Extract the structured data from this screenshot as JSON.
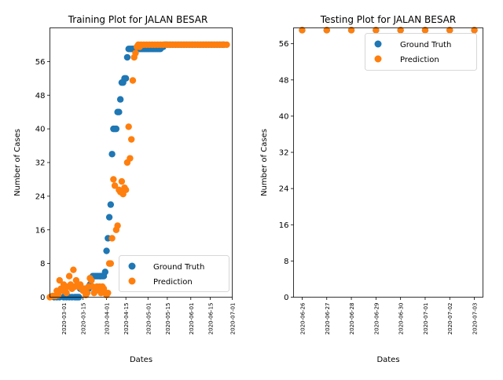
{
  "colors": {
    "ground_truth": "#1f77b4",
    "prediction": "#ff7f0e"
  },
  "chart_data": [
    {
      "type": "scatter",
      "title": "Training Plot for JALAN BESAR",
      "xlabel": "Dates",
      "ylabel": "Number of Cases",
      "x_axis": "date",
      "xlim": [
        "2020-02-20",
        "2020-07-01"
      ],
      "ylim": [
        0,
        64
      ],
      "xticks": [
        "2020-03-01",
        "2020-03-15",
        "2020-04-01",
        "2020-04-15",
        "2020-05-01",
        "2020-05-15",
        "2020-06-01",
        "2020-06-15",
        "2020-07-01"
      ],
      "yticks": [
        0,
        8,
        16,
        24,
        32,
        40,
        48,
        56
      ],
      "legend": {
        "position": "lower-right",
        "entries": [
          "Ground Truth",
          "Prediction"
        ]
      },
      "series": [
        {
          "name": "Ground Truth",
          "color": "#1f77b4",
          "points": [
            [
              "2020-02-23",
              0
            ],
            [
              "2020-02-25",
              0
            ],
            [
              "2020-02-27",
              0
            ],
            [
              "2020-03-01",
              0
            ],
            [
              "2020-03-03",
              0
            ],
            [
              "2020-03-05",
              0
            ],
            [
              "2020-03-07",
              0
            ],
            [
              "2020-03-09",
              0
            ],
            [
              "2020-03-10",
              0
            ],
            [
              "2020-03-11",
              0
            ],
            [
              "2020-03-12",
              0
            ],
            [
              "2020-03-13",
              2
            ],
            [
              "2020-03-14",
              2
            ],
            [
              "2020-03-15",
              2
            ],
            [
              "2020-03-16",
              2
            ],
            [
              "2020-03-17",
              2
            ],
            [
              "2020-03-18",
              2
            ],
            [
              "2020-03-19",
              2
            ],
            [
              "2020-03-20",
              3
            ],
            [
              "2020-03-21",
              4
            ],
            [
              "2020-03-22",
              5
            ],
            [
              "2020-03-23",
              5
            ],
            [
              "2020-03-24",
              5
            ],
            [
              "2020-03-25",
              5
            ],
            [
              "2020-03-26",
              5
            ],
            [
              "2020-03-27",
              5
            ],
            [
              "2020-03-28",
              5
            ],
            [
              "2020-03-29",
              5
            ],
            [
              "2020-03-30",
              5
            ],
            [
              "2020-03-31",
              6
            ],
            [
              "2020-04-01",
              11
            ],
            [
              "2020-04-02",
              14
            ],
            [
              "2020-04-03",
              19
            ],
            [
              "2020-04-04",
              22
            ],
            [
              "2020-04-05",
              34
            ],
            [
              "2020-04-06",
              40
            ],
            [
              "2020-04-07",
              40
            ],
            [
              "2020-04-08",
              40
            ],
            [
              "2020-04-09",
              44
            ],
            [
              "2020-04-10",
              44
            ],
            [
              "2020-04-11",
              47
            ],
            [
              "2020-04-12",
              51
            ],
            [
              "2020-04-13",
              51
            ],
            [
              "2020-04-14",
              52
            ],
            [
              "2020-04-15",
              52
            ],
            [
              "2020-04-16",
              57
            ],
            [
              "2020-04-17",
              59
            ],
            [
              "2020-04-18",
              59
            ],
            [
              "2020-04-19",
              59
            ],
            [
              "2020-04-20",
              59
            ],
            [
              "2020-04-21",
              59
            ],
            [
              "2020-04-22",
              59
            ],
            [
              "2020-04-23",
              59
            ],
            [
              "2020-04-24",
              59
            ],
            [
              "2020-04-25",
              59
            ],
            [
              "2020-04-26",
              59
            ],
            [
              "2020-04-27",
              59
            ],
            [
              "2020-04-28",
              59
            ],
            [
              "2020-04-29",
              59
            ],
            [
              "2020-04-30",
              59
            ],
            [
              "2020-05-01",
              59
            ],
            [
              "2020-05-02",
              59
            ],
            [
              "2020-05-03",
              59
            ],
            [
              "2020-05-04",
              59
            ],
            [
              "2020-05-05",
              59
            ],
            [
              "2020-05-06",
              59
            ],
            [
              "2020-05-07",
              59
            ],
            [
              "2020-05-08",
              59
            ],
            [
              "2020-05-09",
              59
            ],
            [
              "2020-05-10",
              59
            ],
            [
              "2020-05-11",
              59.5
            ],
            [
              "2020-05-12",
              59.5
            ],
            [
              "2020-05-13",
              60
            ],
            [
              "2020-05-14",
              60
            ],
            [
              "2020-05-15",
              60
            ],
            [
              "2020-05-17",
              60
            ],
            [
              "2020-05-19",
              60
            ],
            [
              "2020-05-21",
              60
            ],
            [
              "2020-05-23",
              60
            ],
            [
              "2020-05-25",
              60
            ],
            [
              "2020-05-27",
              60
            ],
            [
              "2020-05-29",
              60
            ],
            [
              "2020-05-31",
              60
            ],
            [
              "2020-06-02",
              60
            ],
            [
              "2020-06-04",
              60
            ],
            [
              "2020-06-06",
              60
            ],
            [
              "2020-06-08",
              60
            ],
            [
              "2020-06-10",
              60
            ],
            [
              "2020-06-12",
              60
            ],
            [
              "2020-06-14",
              60
            ],
            [
              "2020-06-16",
              60
            ],
            [
              "2020-06-18",
              60
            ],
            [
              "2020-06-20",
              60
            ],
            [
              "2020-06-22",
              60
            ],
            [
              "2020-06-24",
              60
            ],
            [
              "2020-06-25",
              60
            ]
          ]
        },
        {
          "name": "Prediction",
          "color": "#ff7f0e",
          "points": [
            [
              "2020-02-20",
              0
            ],
            [
              "2020-02-22",
              0.3
            ],
            [
              "2020-02-24",
              0.3
            ],
            [
              "2020-02-25",
              1.5
            ],
            [
              "2020-02-26",
              0.5
            ],
            [
              "2020-02-27",
              4
            ],
            [
              "2020-02-28",
              2
            ],
            [
              "2020-02-29",
              1.5
            ],
            [
              "2020-03-01",
              3
            ],
            [
              "2020-03-02",
              2
            ],
            [
              "2020-03-03",
              1
            ],
            [
              "2020-03-04",
              2.5
            ],
            [
              "2020-03-05",
              5
            ],
            [
              "2020-03-06",
              3
            ],
            [
              "2020-03-07",
              2
            ],
            [
              "2020-03-08",
              6.5
            ],
            [
              "2020-03-09",
              2.5
            ],
            [
              "2020-03-10",
              4
            ],
            [
              "2020-03-11",
              3
            ],
            [
              "2020-03-12",
              2.5
            ],
            [
              "2020-03-13",
              3
            ],
            [
              "2020-03-14",
              2
            ],
            [
              "2020-03-15",
              1.5
            ],
            [
              "2020-03-16",
              2
            ],
            [
              "2020-03-17",
              0.5
            ],
            [
              "2020-03-18",
              1
            ],
            [
              "2020-03-19",
              2.5
            ],
            [
              "2020-03-20",
              4.5
            ],
            [
              "2020-03-21",
              4
            ],
            [
              "2020-03-22",
              2.5
            ],
            [
              "2020-03-23",
              1
            ],
            [
              "2020-03-24",
              1.5
            ],
            [
              "2020-03-25",
              2.5
            ],
            [
              "2020-03-26",
              2
            ],
            [
              "2020-03-27",
              2.5
            ],
            [
              "2020-03-28",
              1
            ],
            [
              "2020-03-29",
              2.5
            ],
            [
              "2020-03-30",
              2
            ],
            [
              "2020-03-31",
              1
            ],
            [
              "2020-04-01",
              0.5
            ],
            [
              "2020-04-02",
              1
            ],
            [
              "2020-04-03",
              8
            ],
            [
              "2020-04-04",
              8
            ],
            [
              "2020-04-05",
              14
            ],
            [
              "2020-04-06",
              28
            ],
            [
              "2020-04-07",
              26.5
            ],
            [
              "2020-04-08",
              16
            ],
            [
              "2020-04-09",
              17
            ],
            [
              "2020-04-10",
              25.5
            ],
            [
              "2020-04-11",
              25
            ],
            [
              "2020-04-12",
              27.5
            ],
            [
              "2020-04-13",
              24.5
            ],
            [
              "2020-04-14",
              26
            ],
            [
              "2020-04-15",
              25.5
            ],
            [
              "2020-04-16",
              32
            ],
            [
              "2020-04-17",
              40.5
            ],
            [
              "2020-04-18",
              33
            ],
            [
              "2020-04-19",
              37.5
            ],
            [
              "2020-04-20",
              51.5
            ],
            [
              "2020-04-21",
              57
            ],
            [
              "2020-04-22",
              58
            ],
            [
              "2020-04-23",
              59.5
            ],
            [
              "2020-04-24",
              60
            ],
            [
              "2020-04-25",
              59.5
            ],
            [
              "2020-04-26",
              60
            ],
            [
              "2020-04-28",
              60
            ],
            [
              "2020-04-30",
              60
            ],
            [
              "2020-05-02",
              60
            ],
            [
              "2020-05-04",
              60
            ],
            [
              "2020-05-06",
              60
            ],
            [
              "2020-05-08",
              60
            ],
            [
              "2020-05-10",
              60
            ],
            [
              "2020-05-12",
              60
            ],
            [
              "2020-05-14",
              60
            ],
            [
              "2020-05-16",
              60
            ],
            [
              "2020-05-18",
              60
            ],
            [
              "2020-05-20",
              60
            ],
            [
              "2020-05-22",
              60
            ],
            [
              "2020-05-24",
              60
            ],
            [
              "2020-05-26",
              60
            ],
            [
              "2020-05-28",
              60
            ],
            [
              "2020-05-30",
              60
            ],
            [
              "2020-06-01",
              60
            ],
            [
              "2020-06-03",
              60
            ],
            [
              "2020-06-05",
              60
            ],
            [
              "2020-06-07",
              60
            ],
            [
              "2020-06-09",
              60
            ],
            [
              "2020-06-11",
              60
            ],
            [
              "2020-06-13",
              60
            ],
            [
              "2020-06-15",
              60
            ],
            [
              "2020-06-17",
              60
            ],
            [
              "2020-06-19",
              60
            ],
            [
              "2020-06-21",
              60
            ],
            [
              "2020-06-23",
              60
            ],
            [
              "2020-06-25",
              60
            ],
            [
              "2020-06-27",
              60
            ]
          ]
        }
      ]
    },
    {
      "type": "scatter",
      "title": "Testing Plot for JALAN BESAR",
      "xlabel": "Dates",
      "ylabel": "Number of Cases",
      "x_axis": "date",
      "xlim": [
        "2020-06-25.65",
        "2020-07-03.35"
      ],
      "ylim": [
        0,
        59.5
      ],
      "xticks": [
        "2020-06-26",
        "2020-06-27",
        "2020-06-28",
        "2020-06-29",
        "2020-06-30",
        "2020-07-01",
        "2020-07-02",
        "2020-07-03"
      ],
      "yticks": [
        0,
        8,
        16,
        24,
        32,
        40,
        48,
        56
      ],
      "legend": {
        "position": "top-right",
        "entries": [
          "Ground Truth",
          "Prediction"
        ]
      },
      "series": [
        {
          "name": "Ground Truth",
          "color": "#1f77b4",
          "points": [
            [
              "2020-06-26",
              59
            ],
            [
              "2020-06-27",
              59
            ],
            [
              "2020-06-28",
              59
            ],
            [
              "2020-06-29",
              59
            ],
            [
              "2020-06-30",
              59
            ],
            [
              "2020-07-01",
              59
            ],
            [
              "2020-07-02",
              59
            ],
            [
              "2020-07-03",
              59
            ]
          ]
        },
        {
          "name": "Prediction",
          "color": "#ff7f0e",
          "points": [
            [
              "2020-06-26",
              59
            ],
            [
              "2020-06-27",
              59
            ],
            [
              "2020-06-28",
              59
            ],
            [
              "2020-06-29",
              59
            ],
            [
              "2020-06-30",
              59
            ],
            [
              "2020-07-01",
              59
            ],
            [
              "2020-07-02",
              59
            ],
            [
              "2020-07-03",
              59
            ]
          ]
        }
      ]
    }
  ]
}
